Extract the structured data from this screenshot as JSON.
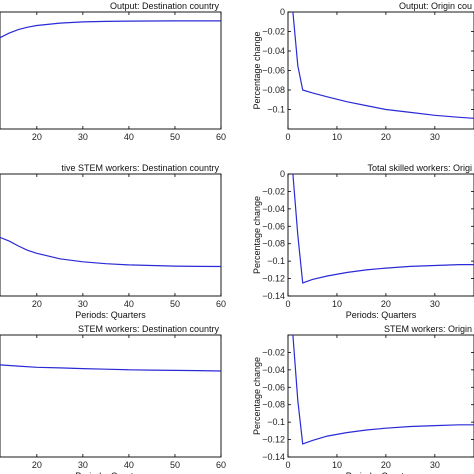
{
  "chart_data": [
    {
      "type": "line",
      "title": "Output: Destination country",
      "xlabel": "",
      "ylabel": "",
      "xticks": [
        20,
        30,
        40,
        50,
        60
      ],
      "xlim": [
        12,
        60
      ],
      "ylim": [
        0,
        1
      ],
      "yticks": [],
      "series": [
        {
          "x": [
            12,
            14,
            16,
            18,
            20,
            25,
            30,
            35,
            40,
            45,
            50,
            55,
            60
          ],
          "y": [
            0.78,
            0.82,
            0.85,
            0.87,
            0.885,
            0.905,
            0.915,
            0.92,
            0.922,
            0.923,
            0.924,
            0.924,
            0.924
          ]
        }
      ]
    },
    {
      "type": "line",
      "title": "Output: Origin cou",
      "xlabel": "",
      "ylabel": "Percentage change",
      "xticks": [
        0,
        10,
        20,
        30
      ],
      "xlim": [
        0,
        38
      ],
      "ylim": [
        -0.12,
        0
      ],
      "yticks": [
        0,
        -0.02,
        -0.04,
        -0.06,
        -0.08,
        -0.1
      ],
      "ytick_labels": [
        "0",
        "−0.02",
        "−0.04",
        "−0.06",
        "−0.08",
        "−0.1"
      ],
      "series": [
        {
          "x": [
            1,
            2,
            3,
            5,
            8,
            12,
            16,
            20,
            25,
            30,
            35,
            38
          ],
          "y": [
            0,
            -0.055,
            -0.08,
            -0.083,
            -0.087,
            -0.092,
            -0.096,
            -0.1,
            -0.103,
            -0.106,
            -0.108,
            -0.109
          ]
        }
      ]
    },
    {
      "type": "line",
      "title": "tive STEM workers: Destination country",
      "xlabel": "Periods: Quarters",
      "ylabel": "",
      "xticks": [
        20,
        30,
        40,
        50,
        60
      ],
      "xlim": [
        12,
        60
      ],
      "ylim": [
        0,
        1
      ],
      "yticks": [],
      "series": [
        {
          "x": [
            12,
            14,
            16,
            18,
            20,
            25,
            30,
            35,
            40,
            45,
            50,
            55,
            60
          ],
          "y": [
            0.48,
            0.45,
            0.41,
            0.375,
            0.35,
            0.305,
            0.28,
            0.265,
            0.255,
            0.25,
            0.245,
            0.243,
            0.242
          ]
        }
      ]
    },
    {
      "type": "line",
      "title": "Total skilled workers: Origi",
      "xlabel": "Periods: Quarters",
      "ylabel": "Percentage change",
      "xticks": [
        0,
        10,
        20,
        30
      ],
      "xlim": [
        0,
        38
      ],
      "ylim": [
        -0.14,
        0
      ],
      "yticks": [
        0,
        -0.02,
        -0.04,
        -0.06,
        -0.08,
        -0.1,
        -0.12,
        -0.14
      ],
      "ytick_labels": [
        "0",
        "−0.02",
        "−0.04",
        "−0.06",
        "−0.08",
        "−0.1",
        "−0.12",
        "−0.14"
      ],
      "series": [
        {
          "x": [
            1,
            2,
            3,
            5,
            8,
            12,
            16,
            20,
            25,
            30,
            35,
            38
          ],
          "y": [
            0,
            -0.07,
            -0.125,
            -0.121,
            -0.117,
            -0.113,
            -0.11,
            -0.108,
            -0.106,
            -0.105,
            -0.104,
            -0.104
          ]
        }
      ]
    },
    {
      "type": "line",
      "title": "STEM workers: Destination country",
      "xlabel": "Periods: Quarters",
      "ylabel": "",
      "xticks": [
        20,
        30,
        40,
        50,
        60
      ],
      "xlim": [
        12,
        60
      ],
      "ylim": [
        0,
        1
      ],
      "yticks": [],
      "series": [
        {
          "x": [
            12,
            16,
            20,
            25,
            30,
            35,
            40,
            45,
            50,
            55,
            60
          ],
          "y": [
            0.755,
            0.745,
            0.735,
            0.73,
            0.725,
            0.72,
            0.715,
            0.712,
            0.71,
            0.708,
            0.705
          ]
        }
      ]
    },
    {
      "type": "line",
      "title": "STEM workers: Origin",
      "xlabel": "Periods: Quarters",
      "ylabel": "Percentage change",
      "xticks": [
        0,
        10,
        20,
        30
      ],
      "xlim": [
        0,
        38
      ],
      "ylim": [
        -0.14,
        0
      ],
      "yticks": [
        -0.02,
        -0.04,
        -0.06,
        -0.08,
        -0.1,
        -0.12,
        -0.14
      ],
      "ytick_labels": [
        "−0.02",
        "−0.04",
        "−0.06",
        "−0.08",
        "−0.1",
        "−0.12",
        "−0.14"
      ],
      "series": [
        {
          "x": [
            1,
            2,
            3,
            5,
            8,
            12,
            16,
            20,
            25,
            30,
            35,
            38
          ],
          "y": [
            0,
            -0.075,
            -0.125,
            -0.121,
            -0.116,
            -0.112,
            -0.109,
            -0.107,
            -0.105,
            -0.104,
            -0.103,
            -0.103
          ]
        }
      ]
    }
  ]
}
